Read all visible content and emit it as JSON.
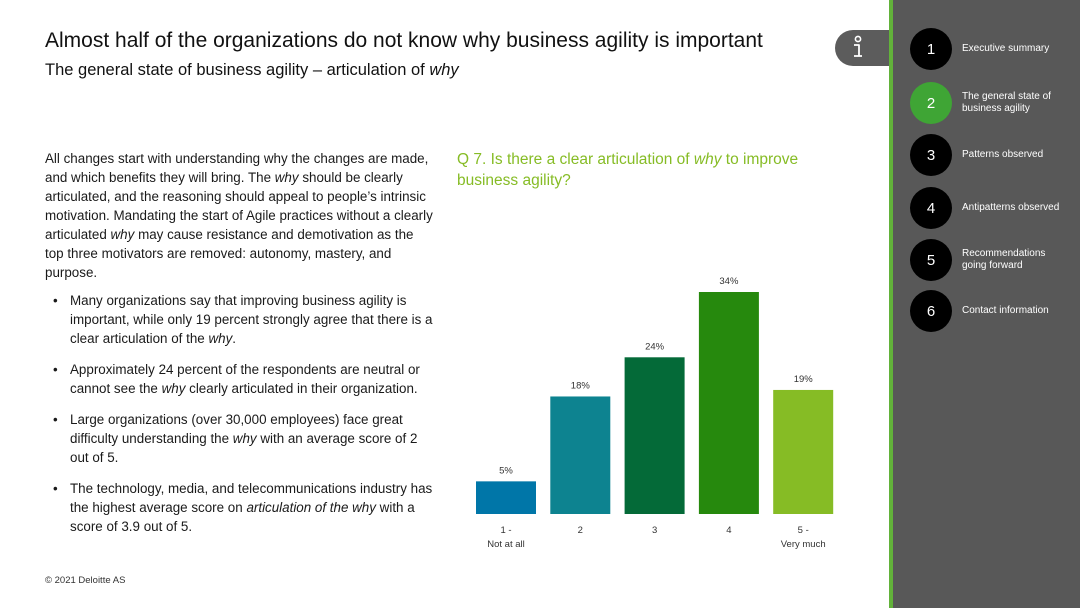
{
  "header": {
    "title": "Almost half of the organizations do not know why business agility is important",
    "subtitle_prefix": "The general state of business agility – articulation of ",
    "subtitle_em": "why"
  },
  "body": {
    "intro": [
      {
        "t": "All changes start with understanding why the changes are made, and which benefits they will bring. The "
      },
      {
        "t": "why",
        "em": true
      },
      {
        "t": " should be clearly articulated, and the reasoning should appeal to people’s intrinsic motivation. Mandating the start of Agile practices without a clearly articulated "
      },
      {
        "t": "why",
        "em": true
      },
      {
        "t": " may cause resistance and demotivation as the top three motivators are removed: autonomy, mastery, and purpose."
      }
    ],
    "bullets": [
      [
        {
          "t": "Many organizations say that improving business agility is important, while only 19 percent strongly agree that there is a clear articulation of the "
        },
        {
          "t": "why",
          "em": true
        },
        {
          "t": "."
        }
      ],
      [
        {
          "t": "Approximately 24 percent of the respondents are neutral or cannot see the "
        },
        {
          "t": "why",
          "em": true
        },
        {
          "t": " clearly articulated in their organization."
        }
      ],
      [
        {
          "t": "Large organizations (over 30,000 employees) face great difficulty understanding the "
        },
        {
          "t": "why",
          "em": true
        },
        {
          "t": " with an average score of 2 out of 5."
        }
      ],
      [
        {
          "t": "The technology, media, and telecommunications industry has the highest average score on "
        },
        {
          "t": "articulation of the why",
          "em": true
        },
        {
          "t": " with a score of 3.9 out of 5."
        }
      ]
    ]
  },
  "question": {
    "prefix": "Q 7. Is there a clear articulation of ",
    "em": "why",
    "suffix": " to improve business agility?"
  },
  "chart_data": {
    "type": "bar",
    "categories": [
      {
        "line1": "1 -",
        "line2": "Not at all"
      },
      {
        "line1": "2",
        "line2": ""
      },
      {
        "line1": "3",
        "line2": ""
      },
      {
        "line1": "4",
        "line2": ""
      },
      {
        "line1": "5 -",
        "line2": "Very much"
      }
    ],
    "values": [
      5,
      18,
      24,
      34,
      19
    ],
    "value_labels": [
      "5%",
      "18%",
      "24%",
      "34%",
      "19%"
    ],
    "colors": [
      "#0076a8",
      "#0d8390",
      "#046a38",
      "#26890d",
      "#86bc25"
    ],
    "unit": "%",
    "ylim": [
      0,
      34
    ],
    "grid": false
  },
  "footer": {
    "copyright": "© 2021 Deloitte AS"
  },
  "sidebar": {
    "accent": "#62b23a",
    "items": [
      {
        "number": "1",
        "label": "Executive summary",
        "active": false
      },
      {
        "number": "2",
        "label": "The general state of business agility",
        "active": true
      },
      {
        "number": "3",
        "label": "Patterns observed",
        "active": false
      },
      {
        "number": "4",
        "label": "Antipatterns observed",
        "active": false
      },
      {
        "number": "5",
        "label": "Recommendations going forward",
        "active": false
      },
      {
        "number": "6",
        "label": "Contact information",
        "active": false
      }
    ]
  },
  "icons": {
    "info": "info-icon"
  }
}
